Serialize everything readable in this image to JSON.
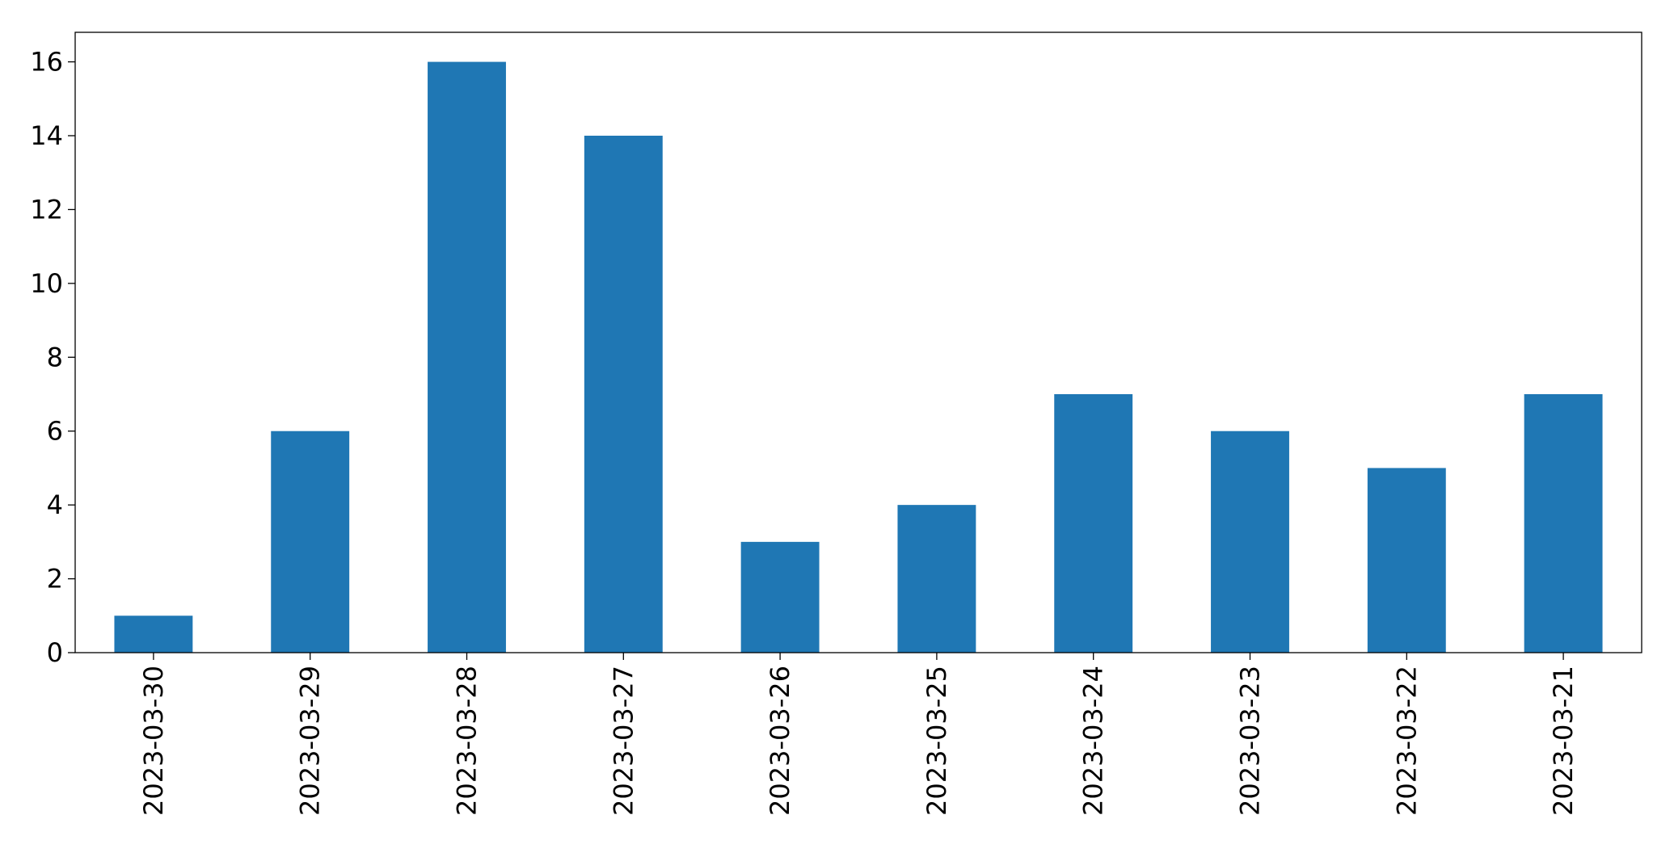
{
  "chart_data": {
    "type": "bar",
    "categories": [
      "2023-03-30",
      "2023-03-29",
      "2023-03-28",
      "2023-03-27",
      "2023-03-26",
      "2023-03-25",
      "2023-03-24",
      "2023-03-23",
      "2023-03-22",
      "2023-03-21"
    ],
    "values": [
      1,
      6,
      16,
      14,
      3,
      4,
      7,
      6,
      5,
      7
    ],
    "color": "#1f77b4",
    "ylim": [
      0,
      16.8
    ],
    "yticks": [
      0,
      2,
      4,
      6,
      8,
      10,
      12,
      14,
      16
    ],
    "grid": false
  }
}
